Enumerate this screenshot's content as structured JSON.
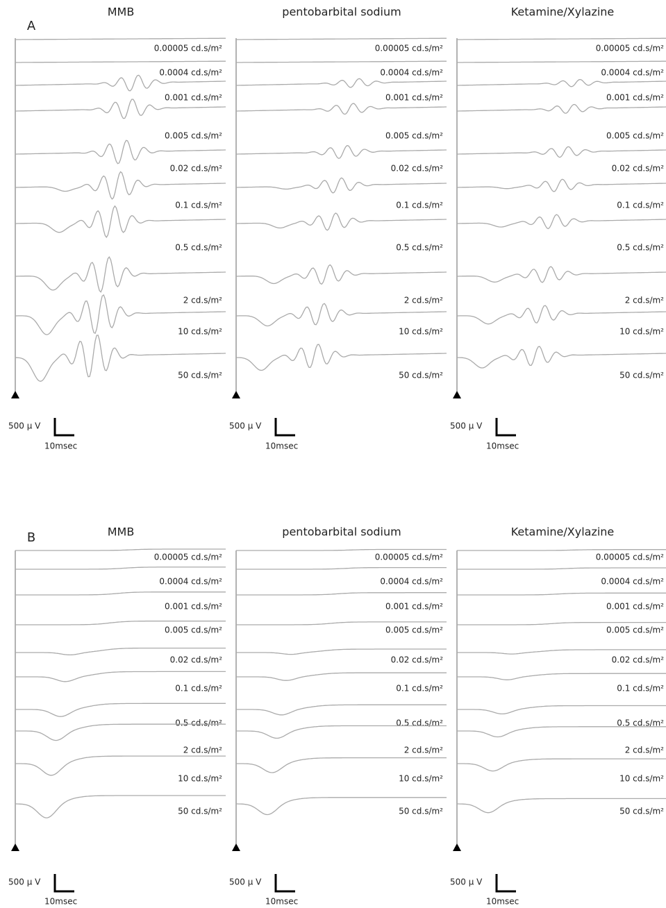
{
  "panels": [
    {
      "label": "A",
      "columns": [
        {
          "title": "MMB",
          "intensities": [
            "0.00005 cd.s/m²",
            "0.0004 cd.s/m²",
            "0.001 cd.s/m²",
            "0.005 cd.s/m²",
            "0.02 cd.s/m²",
            "0.1 cd.s/m²",
            "0.5 cd.s/m²",
            "2 cd.s/m²",
            "10 cd.s/m²",
            "50 cd.s/m²"
          ],
          "scale_voltage": "500 μ V",
          "scale_time": "10msec"
        },
        {
          "title": "pentobarbital sodium",
          "intensities": [
            "0.00005 cd.s/m²",
            "0.0004 cd.s/m²",
            "0.001 cd.s/m²",
            "0.005 cd.s/m²",
            "0.02 cd.s/m²",
            "0.1 cd.s/m²",
            "0.5 cd.s/m²",
            "2 cd.s/m²",
            "10 cd.s/m²",
            "50 cd.s/m²"
          ],
          "scale_voltage": "500 μ V",
          "scale_time": "10msec"
        },
        {
          "title": "Ketamine/Xylazine",
          "intensities": [
            "0.00005 cd.s/m²",
            "0.0004 cd.s/m²",
            "0.001 cd.s/m²",
            "0.005 cd.s/m²",
            "0.02 cd.s/m²",
            "0.1 cd.s/m²",
            "0.5 cd.s/m²",
            "2 cd.s/m²",
            "10 cd.s/m²",
            "50 cd.s/m²"
          ],
          "scale_voltage": "500 μ V",
          "scale_time": "10msec"
        }
      ]
    },
    {
      "label": "B",
      "columns": [
        {
          "title": "MMB",
          "intensities": [
            "0.00005 cd.s/m²",
            "0.0004 cd.s/m²",
            "0.001 cd.s/m²",
            "0.005 cd.s/m²",
            "0.02 cd.s/m²",
            "0.1 cd.s/m²",
            "0.5 cd.s/m²",
            "2 cd.s/m²",
            "10 cd.s/m²",
            "50 cd.s/m²"
          ],
          "scale_voltage": "500 μ V",
          "scale_time": "10msec"
        },
        {
          "title": "pentobarbital sodium",
          "intensities": [
            "0.00005 cd.s/m²",
            "0.0004 cd.s/m²",
            "0.001 cd.s/m²",
            "0.005 cd.s/m²",
            "0.02 cd.s/m²",
            "0.1 cd.s/m²",
            "0.5 cd.s/m²",
            "2 cd.s/m²",
            "10 cd.s/m²",
            "50 cd.s/m²"
          ],
          "scale_voltage": "500 μ V",
          "scale_time": "10msec"
        },
        {
          "title": "Ketamine/Xylazine",
          "intensities": [
            "0.00005 cd.s/m²",
            "0.0004 cd.s/m²",
            "0.001 cd.s/m²",
            "0.005 cd.s/m²",
            "0.02 cd.s/m²",
            "0.1 cd.s/m²",
            "0.5 cd.s/m²",
            "2 cd.s/m²",
            "10 cd.s/m²",
            "50 cd.s/m²"
          ],
          "scale_voltage": "500 μ V",
          "scale_time": "10msec"
        }
      ]
    }
  ]
}
